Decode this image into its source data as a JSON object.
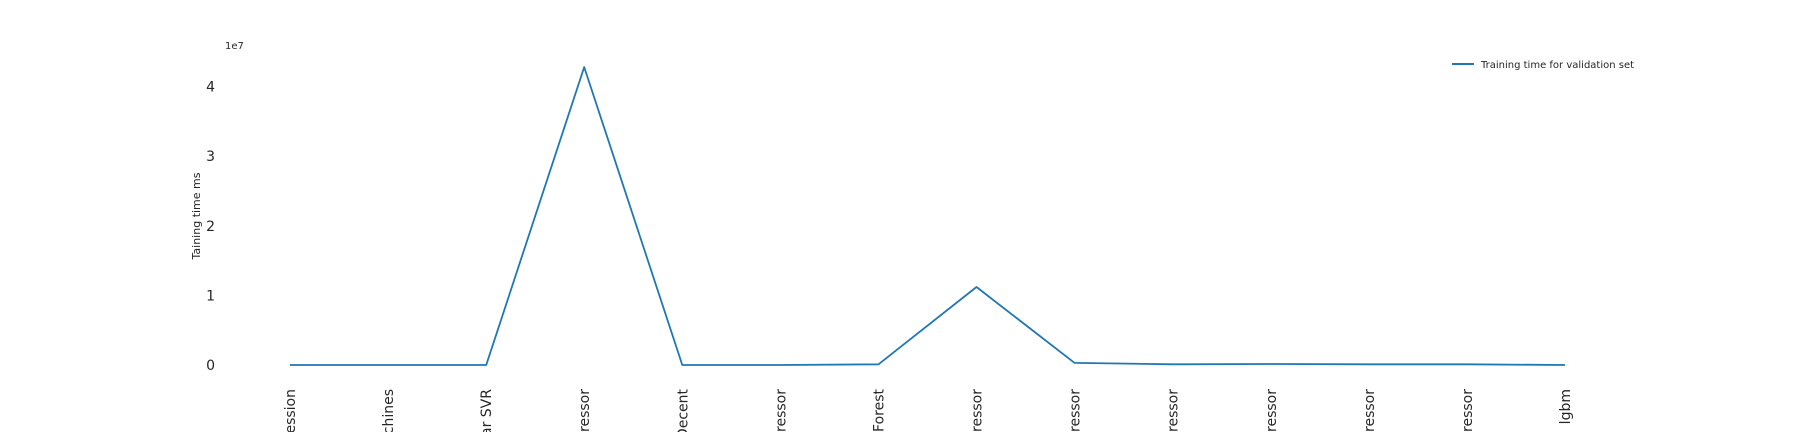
{
  "chart_data": {
    "type": "line",
    "ylabel": "Taining time ms",
    "y_offset_label": "1e7",
    "y_ticks": [
      0,
      1,
      2,
      3,
      4
    ],
    "ylim": [
      -0.3,
      4.5
    ],
    "grid": false,
    "legend_position": "top-right",
    "categories": [
      "ression",
      "chines",
      "ar SVR",
      "gressor",
      "Decent",
      "gressor",
      "Forest",
      "gressor",
      "ressor",
      "ressor",
      "ressor",
      "gressor",
      "ressor",
      "lgbm"
    ],
    "series": [
      {
        "name": "Training time for validation set",
        "color": "#1f77b4",
        "values": [
          0.0,
          0.0,
          0.0,
          4.28,
          0.0,
          0.0,
          0.01,
          1.12,
          0.03,
          0.01,
          0.015,
          0.01,
          0.01,
          0.0
        ]
      }
    ]
  }
}
